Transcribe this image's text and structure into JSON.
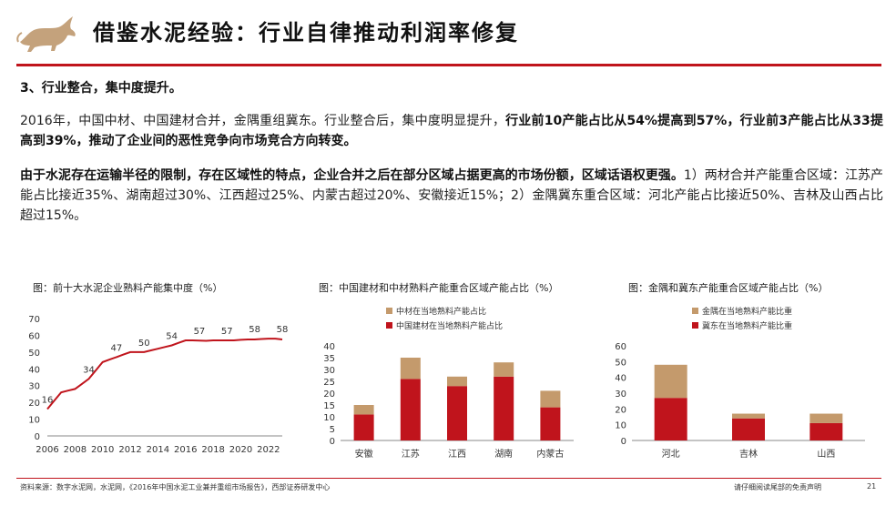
{
  "header": {
    "title": "借鉴水泥经验：行业自律推动利润率修复",
    "brand_color": "#c0141c",
    "logo_color": "#c4a27c"
  },
  "section": {
    "heading": "3、行业整合，集中度提升。"
  },
  "paragraph1": {
    "normal": "2016年，中国中材、中国建材合并，金隅重组冀东。行业整合后，集中度明显提升，",
    "bold": "行业前10产能占比从54%提高到57%，行业前3产能占比从33提高到39%，推动了企业间的恶性竞争向市场竞合方向转变。"
  },
  "paragraph2": {
    "bold": "由于水泥存在运输半径的限制，存在区域性的特点，企业合并之后在部分区域占据更高的市场份额，区域话语权更强。",
    "normal": "1）两材合并产能重合区域：江苏产能占比接近35%、湖南超过30%、江西超过25%、内蒙古超过20%、安徽接近15%；2）金隅冀东重合区域：河北产能占比接近50%、吉林及山西占比超过15%。"
  },
  "chart1": {
    "title": "图：前十大水泥企业熟料产能集中度（%）",
    "line_color": "#c0141c"
  },
  "chart2": {
    "title": "图：中国建材和中材熟料产能重合区域产能占比（%）",
    "top_color": "#c49a6c",
    "bottom_color": "#c0141c"
  },
  "chart3": {
    "title": "图：金隅和冀东产能重合区域产能占比（%）",
    "top_color": "#c49a6c",
    "bottom_color": "#c0141c"
  },
  "chart_data": [
    {
      "type": "line",
      "title": "前十大水泥企业熟料产能集中度（%）",
      "xlabel": "",
      "ylabel": "",
      "ylim": [
        0,
        70
      ],
      "yticks": [
        "0",
        "10",
        "20",
        "30",
        "40",
        "50",
        "60",
        "70"
      ],
      "x_tick_labels": [
        "2006",
        "2008",
        "2010",
        "2012",
        "2014",
        "2016",
        "2018",
        "2020",
        "2022"
      ],
      "x": [
        2006,
        2006.5,
        2007,
        2007.5,
        2008,
        2008.5,
        2009,
        2009.5,
        2010,
        2010.5,
        2011,
        2011.5,
        2012,
        2012.5,
        2013,
        2013.5,
        2014,
        2014.5,
        2015,
        2015.5,
        2016,
        2016.5,
        2017,
        2017.5,
        2018,
        2018.5,
        2019,
        2019.5,
        2020,
        2020.5,
        2021,
        2021.5,
        2022,
        2022.5,
        2023
      ],
      "values": [
        16,
        21,
        26,
        27,
        28,
        31,
        34,
        39,
        44,
        45.5,
        47,
        48.5,
        50,
        50,
        50,
        51,
        52,
        53,
        54,
        55.5,
        57,
        57,
        56.8,
        56.7,
        57,
        57,
        57,
        57,
        57.3,
        57.5,
        57.5,
        57.8,
        58,
        58,
        57.5
      ],
      "labels": [
        {
          "x": 2006,
          "y": 16,
          "text": "16"
        },
        {
          "x": 2009,
          "y": 34,
          "text": "34"
        },
        {
          "x": 2011,
          "y": 47,
          "text": "47"
        },
        {
          "x": 2013,
          "y": 50,
          "text": "50"
        },
        {
          "x": 2015,
          "y": 54,
          "text": "54"
        },
        {
          "x": 2017,
          "y": 57,
          "text": "57"
        },
        {
          "x": 2019,
          "y": 57,
          "text": "57"
        },
        {
          "x": 2021,
          "y": 58,
          "text": "58"
        },
        {
          "x": 2023,
          "y": 58,
          "text": "58"
        }
      ]
    },
    {
      "type": "bar",
      "stacked": true,
      "title": "中国建材和中材熟料产能重合区域产能占比（%）",
      "categories": [
        "安徽",
        "江苏",
        "江西",
        "湖南",
        "内蒙古"
      ],
      "ylim": [
        0,
        40
      ],
      "yticks": [
        "0",
        "5",
        "10",
        "15",
        "20",
        "25",
        "30",
        "35",
        "40"
      ],
      "legend": "top",
      "series": [
        {
          "name": "中国建材在当地熟料产能占比",
          "values": [
            11,
            26,
            23,
            27,
            14
          ]
        },
        {
          "name": "中材在当地熟料产能占比",
          "values": [
            4,
            9,
            4,
            6,
            7
          ]
        }
      ]
    },
    {
      "type": "bar",
      "stacked": true,
      "title": "金隅和冀东产能重合区域产能占比（%）",
      "categories": [
        "河北",
        "吉林",
        "山西"
      ],
      "ylim": [
        0,
        60
      ],
      "yticks": [
        "0",
        "10",
        "20",
        "30",
        "40",
        "50",
        "60"
      ],
      "legend": "top",
      "series": [
        {
          "name": "冀东在当地熟料产能比重",
          "values": [
            27,
            14,
            11
          ]
        },
        {
          "name": "金隅在当地熟料产能比重",
          "values": [
            21,
            3,
            6
          ]
        }
      ]
    }
  ],
  "footer": {
    "source": "资料来源：数字水泥网，水泥网，《2016年中国水泥工业兼并重组市场报告》，西部证券研发中心",
    "disclaimer": "请仔细阅读尾部的免责声明",
    "page": "21"
  }
}
